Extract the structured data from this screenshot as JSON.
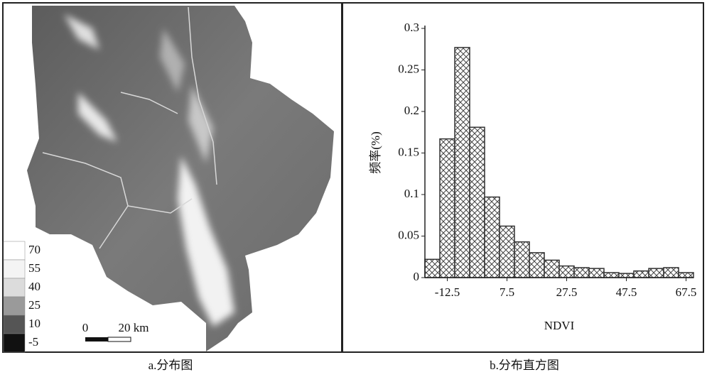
{
  "map": {
    "legend": [
      {
        "label": "70",
        "color": "#ffffff"
      },
      {
        "label": "55",
        "color": "#f4f4f4"
      },
      {
        "label": "40",
        "color": "#dcdcdc"
      },
      {
        "label": "25",
        "color": "#9a9a9a"
      },
      {
        "label": "10",
        "color": "#555555"
      },
      {
        "label": "-5",
        "color": "#111111"
      }
    ],
    "scale_start": "0",
    "scale_end": "20 km",
    "caption": "a.分布图"
  },
  "chart_data": {
    "type": "histogram",
    "caption": "b.分布直方图",
    "xlabel": "NDVI",
    "ylabel": "频率(%)",
    "bins": [
      -20,
      -15,
      -10,
      -5,
      0,
      5,
      10,
      15,
      20,
      25,
      30,
      35,
      40,
      45,
      50,
      55,
      60,
      65,
      70
    ],
    "values": [
      0.022,
      0.167,
      0.277,
      0.181,
      0.097,
      0.062,
      0.043,
      0.03,
      0.021,
      0.014,
      0.012,
      0.011,
      0.006,
      0.005,
      0.008,
      0.011,
      0.012,
      0.006
    ],
    "color": "#333333",
    "xlim": [
      -20,
      70
    ],
    "xticks": [
      -12.5,
      7.5,
      27.5,
      47.5,
      67.5
    ],
    "ylim": [
      0,
      0.3
    ],
    "yticks": [
      0,
      0.05,
      0.1,
      0.15,
      0.2,
      0.25,
      0.3
    ]
  }
}
